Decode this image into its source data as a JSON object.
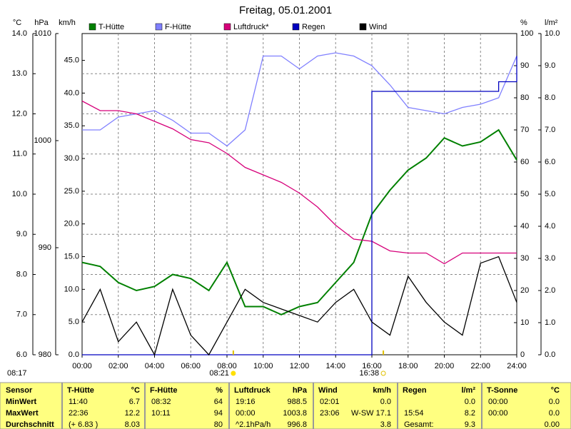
{
  "chart_data": {
    "type": "line",
    "title": "Freitag, 05.01.2001",
    "x": [
      0,
      1,
      2,
      3,
      4,
      5,
      6,
      7,
      8,
      9,
      10,
      11,
      12,
      13,
      14,
      15,
      16,
      17,
      18,
      19,
      20,
      21,
      22,
      23,
      24
    ],
    "xlim": [
      0,
      24
    ],
    "xticks": [
      {
        "value": 0,
        "label": "00:00"
      },
      {
        "value": 2,
        "label": "02:00"
      },
      {
        "value": 4,
        "label": "04:00"
      },
      {
        "value": 6,
        "label": "06:00"
      },
      {
        "value": 8,
        "label": "08:00"
      },
      {
        "value": 10,
        "label": "10:00"
      },
      {
        "value": 12,
        "label": "12:00"
      },
      {
        "value": 14,
        "label": "14:00"
      },
      {
        "value": 16,
        "label": "16:00"
      },
      {
        "value": 18,
        "label": "18:00"
      },
      {
        "value": 20,
        "label": "20:00"
      },
      {
        "value": 22,
        "label": "22:00"
      },
      {
        "value": 24,
        "label": "24:00"
      }
    ],
    "grid": true,
    "axes": [
      {
        "label": "°C",
        "side": "left",
        "lim": [
          6,
          14
        ],
        "ticks": [
          {
            "value": 6,
            "label": "6.0"
          },
          {
            "value": 7,
            "label": "7.0"
          },
          {
            "value": 8,
            "label": "8.0"
          },
          {
            "value": 9,
            "label": "9.0"
          },
          {
            "value": 10,
            "label": "10.0"
          },
          {
            "value": 11,
            "label": "11.0"
          },
          {
            "value": 12,
            "label": "12.0"
          },
          {
            "value": 13,
            "label": "13.0"
          },
          {
            "value": 14,
            "label": "14.0"
          }
        ]
      },
      {
        "label": "hPa",
        "side": "left",
        "lim": [
          980,
          1010
        ],
        "ticks": [
          980,
          990,
          1000,
          1010
        ]
      },
      {
        "label": "km/h",
        "side": "left",
        "lim": [
          0,
          49.1
        ],
        "ticks": [
          {
            "value": 0,
            "label": "0.0"
          },
          {
            "value": 5,
            "label": "5.0"
          },
          {
            "value": 10,
            "label": "10.0"
          },
          {
            "value": 15,
            "label": "15.0"
          },
          {
            "value": 20,
            "label": "20.0"
          },
          {
            "value": 25,
            "label": "25.0"
          },
          {
            "value": 30,
            "label": "30.0"
          },
          {
            "value": 35,
            "label": "35.0"
          },
          {
            "value": 40,
            "label": "40.0"
          },
          {
            "value": 45,
            "label": "45.0"
          }
        ]
      },
      {
        "label": "%",
        "side": "right",
        "lim": [
          0,
          100
        ],
        "ticks": [
          0,
          10,
          20,
          30,
          40,
          50,
          60,
          70,
          80,
          90,
          100
        ]
      },
      {
        "label": "l/m²",
        "side": "right",
        "lim": [
          0,
          10
        ],
        "ticks": [
          {
            "value": 0,
            "label": "0.0"
          },
          {
            "value": 1,
            "label": "1.0"
          },
          {
            "value": 2,
            "label": "2.0"
          },
          {
            "value": 3,
            "label": "3.0"
          },
          {
            "value": 4,
            "label": "4.0"
          },
          {
            "value": 5,
            "label": "5.0"
          },
          {
            "value": 6,
            "label": "6.0"
          },
          {
            "value": 7,
            "label": "7.0"
          },
          {
            "value": 8,
            "label": "8.0"
          },
          {
            "value": 9,
            "label": "9.0"
          },
          {
            "value": 10,
            "label": "10.0"
          }
        ]
      }
    ],
    "series": [
      {
        "name": "T-Hütte",
        "color": "#008000",
        "axis": 0,
        "values": [
          8.3,
          8.2,
          7.8,
          7.6,
          7.7,
          8.0,
          7.9,
          7.6,
          8.3,
          7.2,
          7.2,
          7.0,
          7.2,
          7.3,
          7.8,
          8.3,
          9.5,
          10.1,
          10.6,
          10.9,
          11.4,
          11.2,
          11.3,
          11.6,
          10.85
        ]
      },
      {
        "name": "F-Hütte",
        "color": "#8080ff",
        "axis": 3,
        "values": [
          70,
          70,
          74,
          75,
          76,
          73,
          69,
          69,
          65,
          70,
          93,
          93,
          89,
          93,
          94,
          93,
          90,
          84,
          77,
          76,
          75,
          77,
          78,
          80,
          93
        ]
      },
      {
        "name": "Luftdruck*",
        "color": "#d6007a",
        "axis": 1,
        "values": [
          1003.7,
          1002.8,
          1002.8,
          1002.5,
          1001.8,
          1001.1,
          1000.1,
          999.8,
          998.8,
          997.5,
          996.8,
          996.1,
          995.1,
          993.8,
          992.1,
          990.8,
          990.6,
          989.7,
          989.5,
          989.5,
          988.5,
          989.5,
          989.5,
          989.5,
          989.5
        ]
      },
      {
        "name": "Regen",
        "color": "#0000c0",
        "axis": 4,
        "step": true,
        "values": [
          0,
          0,
          0,
          0,
          0,
          0,
          0,
          0,
          0,
          0,
          0,
          0,
          0,
          0,
          0,
          0,
          8.2,
          8.2,
          8.2,
          8.2,
          8.2,
          8.2,
          8.2,
          8.5,
          9.3
        ]
      },
      {
        "name": "Wind",
        "color": "#000000",
        "axis": 2,
        "values": [
          5,
          10,
          2,
          5,
          0,
          10,
          3,
          0,
          5,
          10,
          8,
          7,
          6,
          5,
          8,
          10,
          5,
          3,
          12,
          8,
          5,
          3,
          14,
          15,
          8
        ]
      }
    ],
    "sunrise": "08:21",
    "sunset": "16:38",
    "timestamp": "08:17"
  },
  "table": {
    "header": "Sensor",
    "columns": [
      {
        "name": "T-Hütte",
        "unit": "°C"
      },
      {
        "name": "F-Hütte",
        "unit": "%"
      },
      {
        "name": "Luftdruck",
        "unit": "hPa"
      },
      {
        "name": "Wind",
        "unit": "km/h"
      },
      {
        "name": "Regen",
        "unit": "l/m²"
      },
      {
        "name": "T-Sonne",
        "unit": "°C"
      }
    ],
    "rows": [
      {
        "label": "MinWert",
        "cells": [
          {
            "time": "11:40",
            "value": "6.7"
          },
          {
            "time": "08:32",
            "value": "64"
          },
          {
            "time": "19:16",
            "value": "988.5"
          },
          {
            "time": "02:01",
            "value": "0.0"
          },
          {
            "value": "0.0"
          },
          {
            "time": "00:00",
            "value": "0.0"
          }
        ]
      },
      {
        "label": "MaxWert",
        "cells": [
          {
            "time": "22:36",
            "value": "12.2"
          },
          {
            "time": "10:11",
            "value": "94"
          },
          {
            "time": "00:00",
            "value": "1003.8"
          },
          {
            "time": "23:06",
            "value": "W-SW 17.1"
          },
          {
            "time": "15:54",
            "value": "8.2"
          },
          {
            "time": "00:00",
            "value": "0.0"
          }
        ]
      },
      {
        "label": "Durchschnitt",
        "cells": [
          {
            "time": "(+ 6.83 )",
            "value": "8.03"
          },
          {
            "value": "80"
          },
          {
            "time": "^2.1hPa/h",
            "value": "996.8"
          },
          {
            "value": "3.8"
          },
          {
            "time": "Gesamt:",
            "value": "9.3"
          },
          {
            "value": "0.00"
          }
        ]
      }
    ]
  }
}
